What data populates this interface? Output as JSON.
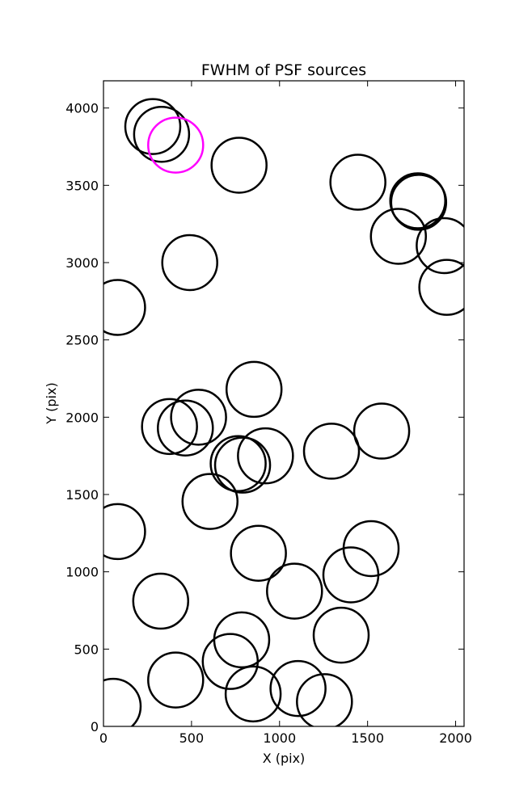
{
  "chart_data": {
    "type": "scatter",
    "title": "FWHM of PSF sources",
    "xlabel": "X (pix)",
    "ylabel": "Y (pix)",
    "xlim": [
      0,
      2048
    ],
    "ylim": [
      0,
      4176
    ],
    "xticks": [
      0,
      500,
      1000,
      1500,
      2000
    ],
    "yticks": [
      0,
      500,
      1000,
      1500,
      2000,
      2500,
      3000,
      3500,
      4000
    ],
    "grid": false,
    "marker": "circle",
    "marker_radius_px": 34,
    "series": [
      {
        "color": "#000000",
        "points": [
          {
            "x": 280,
            "y": 3880
          },
          {
            "x": 330,
            "y": 3830
          },
          {
            "x": 770,
            "y": 3630
          },
          {
            "x": 1445,
            "y": 3520
          },
          {
            "x": 1785,
            "y": 3400
          },
          {
            "x": 1790,
            "y": 3390
          },
          {
            "x": 1675,
            "y": 3170
          },
          {
            "x": 1935,
            "y": 3110
          },
          {
            "x": 1950,
            "y": 2840
          },
          {
            "x": 490,
            "y": 3000
          },
          {
            "x": 80,
            "y": 2710
          },
          {
            "x": 855,
            "y": 2180
          },
          {
            "x": 540,
            "y": 2000
          },
          {
            "x": 465,
            "y": 1930
          },
          {
            "x": 375,
            "y": 1940
          },
          {
            "x": 1580,
            "y": 1910
          },
          {
            "x": 920,
            "y": 1750
          },
          {
            "x": 1295,
            "y": 1780
          },
          {
            "x": 765,
            "y": 1700
          },
          {
            "x": 790,
            "y": 1690
          },
          {
            "x": 605,
            "y": 1455
          },
          {
            "x": 80,
            "y": 1260
          },
          {
            "x": 1520,
            "y": 1150
          },
          {
            "x": 880,
            "y": 1120
          },
          {
            "x": 1405,
            "y": 980
          },
          {
            "x": 1085,
            "y": 875
          },
          {
            "x": 325,
            "y": 810
          },
          {
            "x": 785,
            "y": 560
          },
          {
            "x": 1350,
            "y": 590
          },
          {
            "x": 720,
            "y": 420
          },
          {
            "x": 410,
            "y": 300
          },
          {
            "x": 850,
            "y": 210
          },
          {
            "x": 1105,
            "y": 245
          },
          {
            "x": 1255,
            "y": 160
          },
          {
            "x": 55,
            "y": 130
          }
        ]
      },
      {
        "color": "#ff00ff",
        "points": [
          {
            "x": 410,
            "y": 3760
          }
        ]
      }
    ]
  }
}
